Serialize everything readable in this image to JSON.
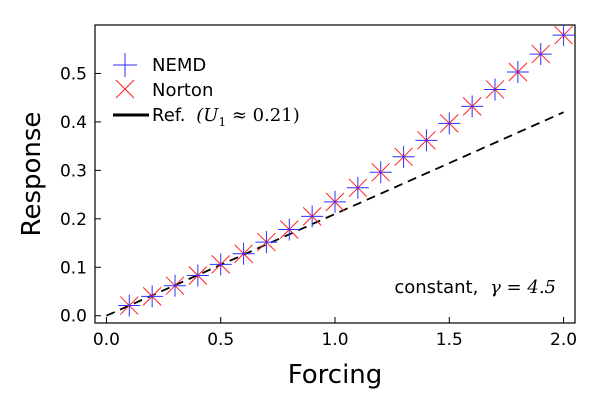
{
  "chart_data": {
    "type": "scatter",
    "xlabel": "Forcing",
    "ylabel": "Response",
    "xlim": [
      -0.05,
      2.05
    ],
    "ylim": [
      -0.015,
      0.6
    ],
    "xticks": [
      0.0,
      0.5,
      1.0,
      1.5,
      2.0
    ],
    "xtick_labels": [
      "0.0",
      "0.5",
      "1.0",
      "1.5",
      "2.0"
    ],
    "yticks": [
      0.0,
      0.1,
      0.2,
      0.3,
      0.4,
      0.5
    ],
    "ytick_labels": [
      "0.0",
      "0.1",
      "0.2",
      "0.3",
      "0.4",
      "0.5"
    ],
    "grid": false,
    "legend_position": "top-left",
    "series": [
      {
        "name": "NEMD",
        "marker": "plus",
        "color": "#2f2fff",
        "x": [
          0.1,
          0.2,
          0.3,
          0.4,
          0.5,
          0.6,
          0.7,
          0.8,
          0.9,
          1.0,
          1.1,
          1.2,
          1.3,
          1.4,
          1.5,
          1.6,
          1.7,
          1.8,
          1.9,
          2.0
        ],
        "y": [
          0.021,
          0.04,
          0.062,
          0.083,
          0.106,
          0.128,
          0.152,
          0.178,
          0.205,
          0.235,
          0.264,
          0.296,
          0.328,
          0.362,
          0.397,
          0.432,
          0.467,
          0.503,
          0.54,
          0.579
        ]
      },
      {
        "name": "Norton",
        "marker": "x",
        "color": "#ff2020",
        "x": [
          0.1,
          0.2,
          0.3,
          0.4,
          0.5,
          0.6,
          0.7,
          0.8,
          0.9,
          1.0,
          1.1,
          1.2,
          1.3,
          1.4,
          1.5,
          1.6,
          1.7,
          1.8,
          1.9,
          2.0
        ],
        "y": [
          0.021,
          0.04,
          0.062,
          0.083,
          0.106,
          0.128,
          0.152,
          0.178,
          0.205,
          0.235,
          0.264,
          0.296,
          0.328,
          0.362,
          0.397,
          0.432,
          0.467,
          0.503,
          0.54,
          0.579
        ]
      },
      {
        "name": "Ref.",
        "marker": "none",
        "line": "dashed",
        "color": "#000000",
        "x": [
          0.0,
          2.0
        ],
        "y": [
          0.0,
          0.42
        ]
      }
    ],
    "legend": {
      "nemd_label": "NEMD",
      "norton_label": "Norton",
      "ref_label": "Ref.",
      "ref_math": "(U",
      "ref_math_sub": "1",
      "ref_math_rest": " ≈ 0.21)"
    },
    "annotation": {
      "text": "constant,",
      "math": "γ = 4.5"
    }
  }
}
